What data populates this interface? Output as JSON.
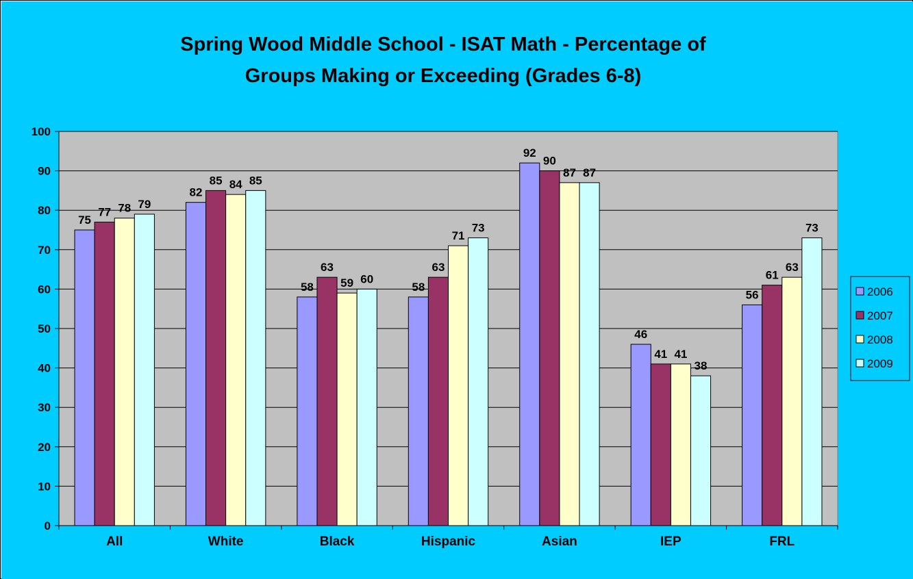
{
  "colors": {
    "chart_background": "#00CCFF",
    "plot_background": "#C0C0C0",
    "gridline": "#000000",
    "series": [
      "#9999FF",
      "#993366",
      "#FFFFCC",
      "#CCFFFF"
    ]
  },
  "chart_data": {
    "type": "bar",
    "title_lines": [
      "Spring Wood Middle School - ISAT Math  - Percentage of",
      "Groups Making or Exceeding (Grades 6-8)"
    ],
    "categories": [
      "All",
      "White",
      "Black",
      "Hispanic",
      "Asian",
      "IEP",
      "FRL"
    ],
    "series": [
      {
        "name": "2006",
        "values": [
          75,
          82,
          58,
          58,
          92,
          46,
          56
        ]
      },
      {
        "name": "2007",
        "values": [
          77,
          85,
          63,
          63,
          90,
          41,
          61
        ]
      },
      {
        "name": "2008",
        "values": [
          78,
          84,
          59,
          71,
          87,
          41,
          63
        ]
      },
      {
        "name": "2009",
        "values": [
          79,
          85,
          60,
          73,
          87,
          38,
          73
        ]
      }
    ],
    "ylim": [
      0,
      100
    ],
    "yticks": [
      "0",
      "10",
      "20",
      "30",
      "40",
      "50",
      "60",
      "70",
      "80",
      "90",
      "100"
    ],
    "grid": true,
    "legend_position": "right",
    "data_labels": true
  }
}
